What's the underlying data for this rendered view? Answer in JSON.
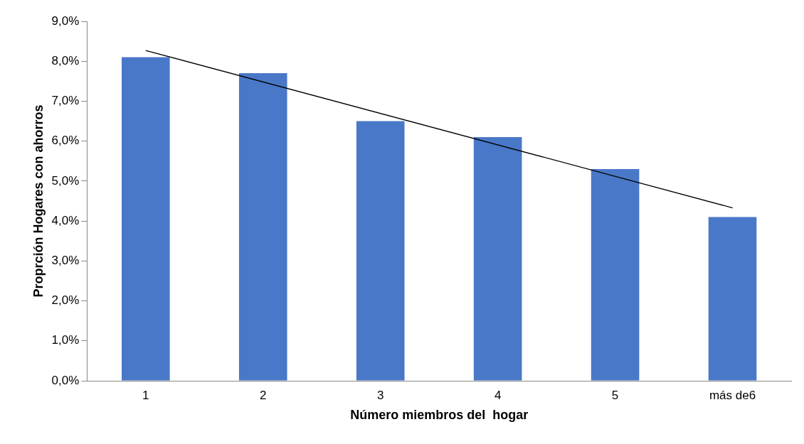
{
  "chart_data": {
    "type": "bar",
    "xlabel": "Número miembros del  hogar",
    "ylabel": "Proprción Hogares con ahorros",
    "categories": [
      "1",
      "2",
      "3",
      "4",
      "5",
      "más de6"
    ],
    "series": [
      {
        "color": "#4a78c8",
        "values": [
          8.1,
          7.7,
          6.5,
          6.1,
          5.3,
          4.1
        ]
      },
      {
        "type": "line",
        "color": "#000000",
        "x": [
          "1",
          "más de6"
        ],
        "values": [
          8.27,
          4.33
        ]
      }
    ],
    "ylim": [
      0,
      9
    ],
    "yticks": [
      {
        "value": 0,
        "label": "0,0%"
      },
      {
        "value": 1,
        "label": "1,0%"
      },
      {
        "value": 2,
        "label": "2,0%"
      },
      {
        "value": 3,
        "label": "3,0%"
      },
      {
        "value": 4,
        "label": "4,0%"
      },
      {
        "value": 5,
        "label": "5,0%"
      },
      {
        "value": 6,
        "label": "6,0%"
      },
      {
        "value": 7,
        "label": "7,0%"
      },
      {
        "value": 8,
        "label": "8,0%"
      },
      {
        "value": 9,
        "label": "9,0%"
      }
    ],
    "grid": false,
    "legend": false,
    "marker": "none"
  }
}
